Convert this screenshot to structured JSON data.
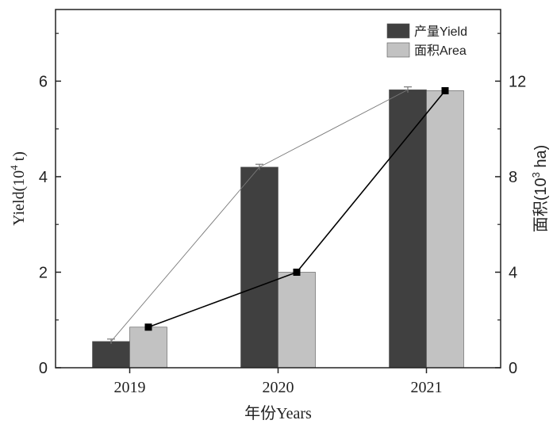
{
  "chart_data": {
    "type": "bar",
    "categories": [
      "2019",
      "2020",
      "2021"
    ],
    "series": [
      {
        "name": "产量Yield",
        "axis": "left",
        "color": "#404040",
        "values": [
          0.55,
          4.2,
          5.82
        ],
        "errors": [
          0.05,
          0.06,
          0.06
        ]
      },
      {
        "name": "面积Area",
        "axis": "right",
        "color": "#c2c2c2",
        "values": [
          1.7,
          4.0,
          11.6
        ]
      }
    ],
    "lines": [
      {
        "series": "产量Yield",
        "axis": "left",
        "color": "#7a7a7a",
        "marker": "none",
        "values": [
          0.55,
          4.2,
          5.82
        ]
      },
      {
        "series": "面积Area",
        "axis": "right",
        "color": "#000000",
        "marker": "square",
        "values": [
          1.7,
          4.0,
          11.6
        ]
      }
    ],
    "xlabel": "年份Years",
    "ylabel_left_prefix": "Yield(10",
    "ylabel_left_exp": "4",
    "ylabel_left_suffix": " t)",
    "ylabel_right_prefix": "面积(10",
    "ylabel_right_exp": "3",
    "ylabel_right_suffix": " ha)",
    "ylim_left": [
      0,
      7.5
    ],
    "ylim_right": [
      0,
      15
    ],
    "yticks_left": [
      0,
      2,
      4,
      6
    ],
    "yticks_right": [
      0,
      4,
      8,
      12
    ],
    "legend_position": "top-right",
    "grid": false
  }
}
